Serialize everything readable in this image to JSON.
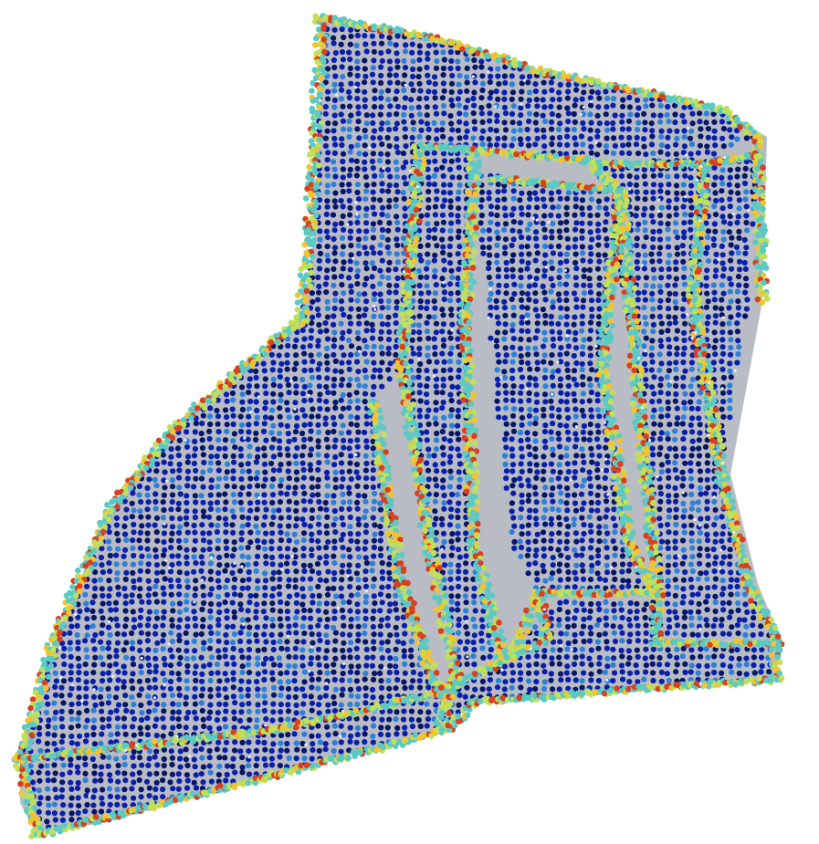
{
  "scene": {
    "subject": "point-cloud-mechanical-part",
    "background_color": "#ffffff",
    "surface_color": "#b9bcc4",
    "palette": {
      "low": "#0a1fa8",
      "low_dark": "#071566",
      "mid_low": "#2f7fd6",
      "mid": "#5cc9c2",
      "mid_high": "#bfe05a",
      "high": "#f2c230",
      "peak": "#d8401f"
    }
  }
}
